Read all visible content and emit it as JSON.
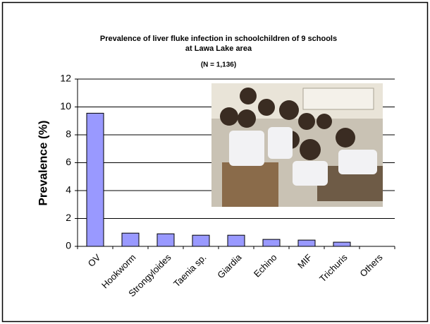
{
  "chart_data": {
    "type": "bar",
    "title": [
      "Prevalence of liver fluke infection in schoolchildren of 9 schools",
      "at Lawa Lake area"
    ],
    "subtitle": "(N = 1,136)",
    "y_label": "Prevalence (%)",
    "categories": [
      "OV",
      "Hookworm",
      "Strongyloides",
      "Taenia sp.",
      "Giardia",
      "Echino",
      "MIF",
      "Trichuris",
      "Others"
    ],
    "values": [
      9.55,
      0.95,
      0.9,
      0.8,
      0.8,
      0.5,
      0.45,
      0.3,
      0
    ],
    "color": "#9999ff",
    "ylim": [
      0,
      12
    ],
    "yticks": [
      0,
      2,
      4,
      6,
      8,
      10,
      12
    ],
    "grid": true
  }
}
